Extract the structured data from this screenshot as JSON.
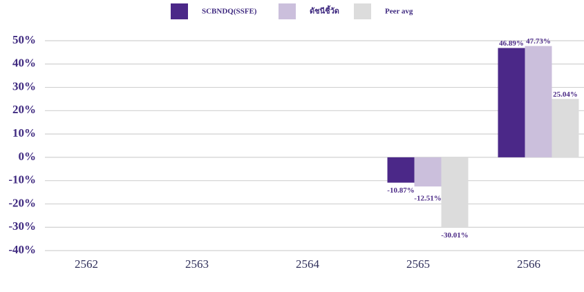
{
  "chart_data": {
    "type": "bar",
    "categories": [
      "2562",
      "2563",
      "2564",
      "2565",
      "2566"
    ],
    "series": [
      {
        "name": "SCBNDQ(SSFE)",
        "color": "#4b2888",
        "values": [
          null,
          null,
          null,
          -10.87,
          46.89
        ],
        "value_labels": [
          null,
          null,
          null,
          "-10.87%",
          "46.89%"
        ]
      },
      {
        "name": "ดัชนีชี้วัด",
        "color": "#cbbfdc",
        "values": [
          null,
          null,
          null,
          -12.51,
          47.73
        ],
        "value_labels": [
          null,
          null,
          null,
          "-12.51%",
          "47.73%"
        ]
      },
      {
        "name": "Peer avg",
        "color": "#dcdcdc",
        "values": [
          null,
          null,
          null,
          -30.01,
          25.04
        ],
        "value_labels": [
          null,
          null,
          null,
          "-30.01%",
          "25.04%"
        ]
      }
    ],
    "ylim": [
      -40,
      50
    ],
    "yticks": [
      {
        "value": 50,
        "label": "50%"
      },
      {
        "value": 40,
        "label": "40%"
      },
      {
        "value": 30,
        "label": "30%"
      },
      {
        "value": 20,
        "label": "20%"
      },
      {
        "value": 10,
        "label": "10%"
      },
      {
        "value": 0,
        "label": "0%"
      },
      {
        "value": -10,
        "label": "-10%"
      },
      {
        "value": -20,
        "label": "-20%"
      },
      {
        "value": -30,
        "label": "-30%"
      },
      {
        "value": -40,
        "label": "-40%"
      }
    ],
    "grid": true,
    "legend": "top"
  }
}
